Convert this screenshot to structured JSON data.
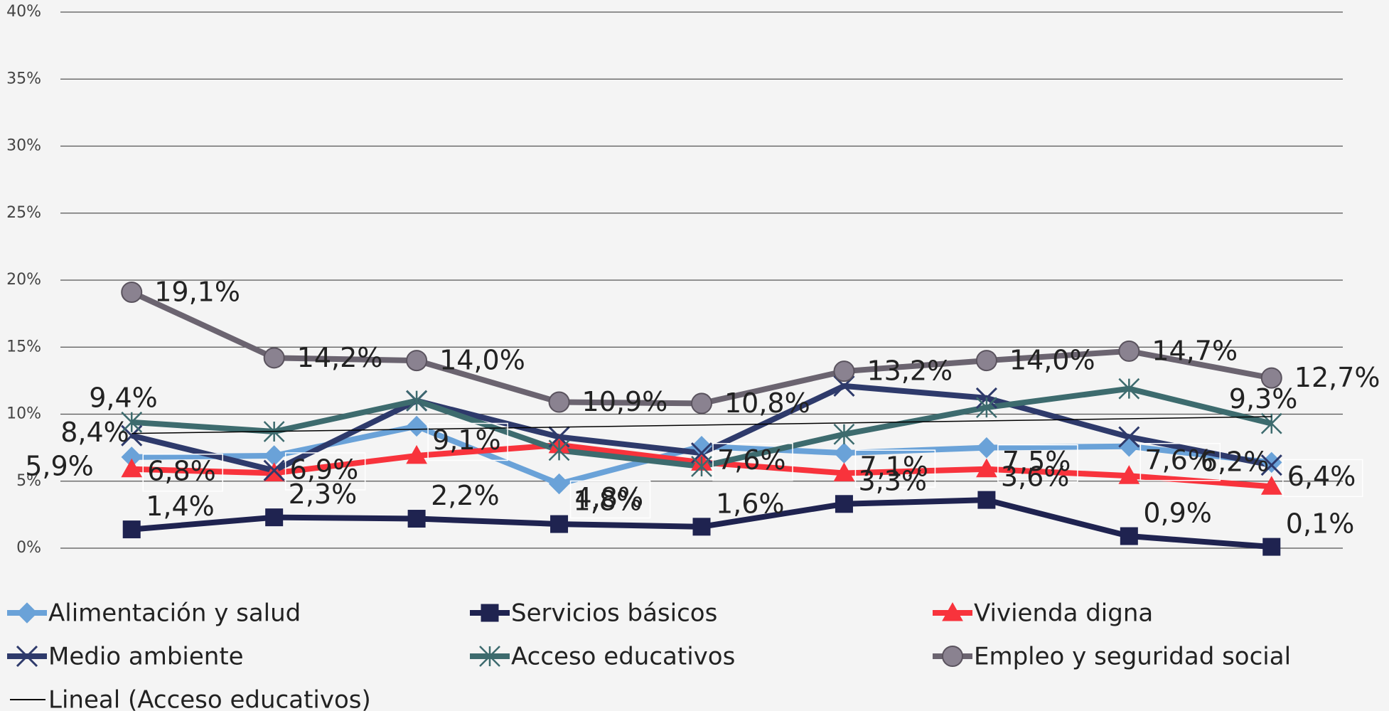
{
  "chart_data": {
    "type": "line",
    "categories": [
      null,
      null,
      null,
      null,
      null,
      null,
      null,
      null,
      null
    ],
    "ylim": [
      0,
      40
    ],
    "yticks": [
      {
        "value": 0,
        "label": "0%"
      },
      {
        "value": 5,
        "label": "5%"
      },
      {
        "value": 10,
        "label": "10%"
      },
      {
        "value": 15,
        "label": "15%"
      },
      {
        "value": 20,
        "label": "20%"
      },
      {
        "value": 25,
        "label": "25%"
      },
      {
        "value": 30,
        "label": "30%"
      },
      {
        "value": 35,
        "label": "35%"
      },
      {
        "value": 40,
        "label": "40%"
      }
    ],
    "grid": true,
    "legend": "bottom",
    "series": [
      {
        "name": "Alimentación y salud",
        "color": "#6aa2d8",
        "marker": "diamond",
        "values": [
          6.8,
          6.9,
          9.1,
          4.8,
          7.6,
          7.1,
          7.5,
          7.6,
          6.4
        ],
        "value_labels": [
          "6,8%",
          "6,9%",
          "9,1%",
          "4,8%",
          "7,6%",
          "7,1%",
          "7,5%",
          "7,6%",
          "6,4%"
        ]
      },
      {
        "name": "Servicios básicos",
        "color": "#1f2350",
        "marker": "square",
        "values": [
          1.4,
          2.3,
          2.2,
          1.8,
          1.6,
          3.3,
          3.6,
          0.9,
          0.1
        ],
        "value_labels": [
          "1,4%",
          "2,3%",
          "2,2%",
          "1,8%",
          "1,6%",
          "3,3%",
          "3,6%",
          "0,9%",
          "0,1%"
        ]
      },
      {
        "name": "Vivienda digna",
        "color": "#f8333c",
        "marker": "triangle",
        "values": [
          5.9,
          5.6,
          6.9,
          7.7,
          6.4,
          5.6,
          5.9,
          5.4,
          4.6
        ],
        "value_labels": [
          "5,9%",
          null,
          null,
          null,
          null,
          null,
          null,
          null,
          null
        ]
      },
      {
        "name": "Medio ambiente",
        "color": "#2e3a6b",
        "marker": "x",
        "values": [
          8.4,
          5.8,
          11.0,
          8.3,
          7.1,
          12.1,
          11.2,
          8.3,
          6.2
        ],
        "value_labels": [
          "8,4%",
          null,
          null,
          null,
          null,
          null,
          null,
          null,
          "6,2%"
        ]
      },
      {
        "name": "Acceso educativos",
        "color": "#3d6b6e",
        "marker": "star",
        "values": [
          9.4,
          8.7,
          11.0,
          7.3,
          6.1,
          8.5,
          10.5,
          11.9,
          9.3
        ],
        "value_labels": [
          "9,4%",
          null,
          null,
          null,
          null,
          null,
          null,
          null,
          "9,3%"
        ]
      },
      {
        "name": "Empleo y seguridad social",
        "color": "#6b6470",
        "marker": "circle",
        "values": [
          19.1,
          14.2,
          14.0,
          10.9,
          10.8,
          13.2,
          14.0,
          14.7,
          12.7
        ],
        "value_labels": [
          "19,1%",
          "14,2%",
          "14,0%",
          "10,9%",
          "10,8%",
          "13,2%",
          "14,0%",
          "14,7%",
          "12,7%"
        ]
      }
    ],
    "trendline": {
      "name": "Lineal (Acceso educativos)",
      "series": "Acceso educativos",
      "color": "#000000"
    }
  }
}
